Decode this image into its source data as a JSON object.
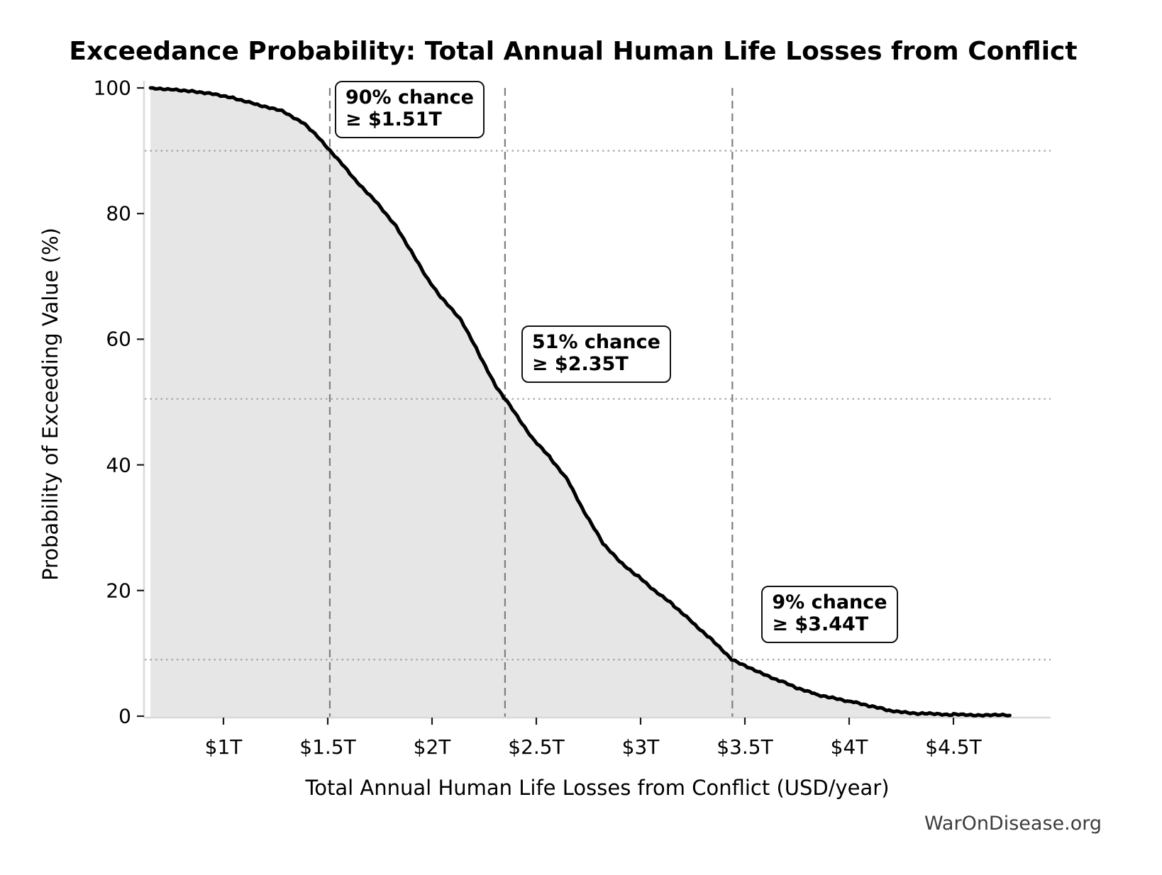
{
  "title": "Exceedance Probability: Total Annual Human Life Losses from Conflict",
  "watermark": "WarOnDisease.org",
  "chart_data": {
    "type": "area",
    "title": "Exceedance Probability: Total Annual Human Life Losses from Conflict",
    "xlabel": "Total Annual Human Life Losses from Conflict (USD/year)",
    "ylabel": "Probability of Exceeding Value (%)",
    "x_unit": "trillions of USD per year",
    "xlim": [
      0.62,
      4.97
    ],
    "ylim": [
      0,
      100
    ],
    "grid": "off (marker guide lines only)",
    "legend": "none",
    "x_ticks": [
      {
        "value": 1.0,
        "label": "$1T"
      },
      {
        "value": 1.5,
        "label": "$1.5T"
      },
      {
        "value": 2.0,
        "label": "$2T"
      },
      {
        "value": 2.5,
        "label": "$2.5T"
      },
      {
        "value": 3.0,
        "label": "$3T"
      },
      {
        "value": 3.5,
        "label": "$3.5T"
      },
      {
        "value": 4.0,
        "label": "$4T"
      },
      {
        "value": 4.5,
        "label": "$4.5T"
      }
    ],
    "y_ticks": [
      {
        "value": 0,
        "label": "0"
      },
      {
        "value": 20,
        "label": "20"
      },
      {
        "value": 40,
        "label": "40"
      },
      {
        "value": 60,
        "label": "60"
      },
      {
        "value": 80,
        "label": "80"
      },
      {
        "value": 100,
        "label": "100"
      }
    ],
    "series": [
      {
        "name": "Exceedance probability curve",
        "style": "thick black empirical (slightly jagged) line with light gray area fill below",
        "points_x_trillionUSD_y_percent": [
          [
            0.65,
            100.0
          ],
          [
            0.75,
            99.8
          ],
          [
            0.85,
            99.5
          ],
          [
            0.95,
            99.1
          ],
          [
            1.05,
            98.4
          ],
          [
            1.15,
            97.5
          ],
          [
            1.29,
            96.2
          ],
          [
            1.38,
            94.5
          ],
          [
            1.45,
            92.4
          ],
          [
            1.51,
            90.0
          ],
          [
            1.57,
            87.8
          ],
          [
            1.63,
            85.4
          ],
          [
            1.73,
            82.0
          ],
          [
            1.83,
            77.9
          ],
          [
            1.9,
            74.0
          ],
          [
            1.97,
            70.0
          ],
          [
            2.05,
            66.4
          ],
          [
            2.14,
            63.0
          ],
          [
            2.22,
            58.0
          ],
          [
            2.31,
            52.3
          ],
          [
            2.35,
            50.5
          ],
          [
            2.42,
            47.2
          ],
          [
            2.48,
            44.3
          ],
          [
            2.57,
            41.0
          ],
          [
            2.65,
            37.6
          ],
          [
            2.73,
            32.5
          ],
          [
            2.82,
            27.5
          ],
          [
            2.9,
            24.6
          ],
          [
            2.99,
            22.2
          ],
          [
            3.07,
            19.9
          ],
          [
            3.16,
            17.6
          ],
          [
            3.25,
            14.9
          ],
          [
            3.33,
            12.5
          ],
          [
            3.44,
            9.0
          ],
          [
            3.5,
            8.1
          ],
          [
            3.58,
            6.8
          ],
          [
            3.67,
            5.6
          ],
          [
            3.75,
            4.5
          ],
          [
            3.84,
            3.5
          ],
          [
            3.92,
            2.9
          ],
          [
            4.01,
            2.3
          ],
          [
            4.1,
            1.6
          ],
          [
            4.18,
            1.0
          ],
          [
            4.27,
            0.6
          ],
          [
            4.35,
            0.4
          ],
          [
            4.5,
            0.25
          ],
          [
            4.63,
            0.18
          ],
          [
            4.77,
            0.12
          ]
        ]
      }
    ],
    "markers": [
      {
        "chance_label": "90% chance",
        "value_label": "≥ $1.51T",
        "probability_pct": 90.0,
        "value_trillionUSD": 1.51
      },
      {
        "chance_label": "51% chance",
        "value_label": "≥ $2.35T",
        "probability_pct": 50.5,
        "value_trillionUSD": 2.35
      },
      {
        "chance_label": "9% chance",
        "value_label": "≥ $3.44T",
        "probability_pct": 9.0,
        "value_trillionUSD": 3.44
      }
    ],
    "colors": {
      "curve": "#000000",
      "area_fill": "#e6e6e6",
      "marker_dashed_line": "#7f7f7f",
      "probability_dotted_line": "#a6a6a6",
      "axis_spine": "#d9d9d9",
      "tick_mark": "#1a1a1a",
      "text": "#000000",
      "watermark_text": "#3d3d3d",
      "background": "#ffffff",
      "annotation_box_bg": "#ffffff",
      "annotation_box_border": "#111111"
    }
  }
}
